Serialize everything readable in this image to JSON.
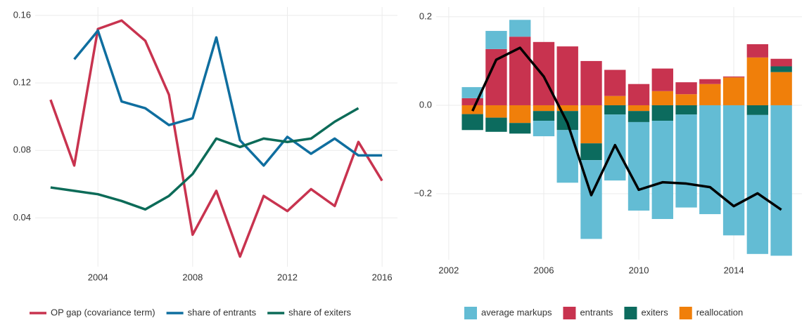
{
  "chart_data": [
    {
      "type": "line",
      "grid": true,
      "x": [
        2002,
        2003,
        2004,
        2005,
        2006,
        2007,
        2008,
        2009,
        2010,
        2011,
        2012,
        2013,
        2014,
        2015,
        2016
      ],
      "xlim": [
        2001.35,
        2016.65
      ],
      "xticks": [
        2004,
        2008,
        2012,
        2016
      ],
      "ylim": [
        0.011,
        0.165
      ],
      "yticks": [
        0.04,
        0.08,
        0.12,
        0.16
      ],
      "legend": "bottom",
      "series": [
        {
          "name": "OP gap (covariance term)",
          "color": "#c8334f",
          "values": [
            0.11,
            0.071,
            0.152,
            0.157,
            0.145,
            0.113,
            0.03,
            0.056,
            0.017,
            0.053,
            0.044,
            0.057,
            0.047,
            0.085,
            0.062
          ]
        },
        {
          "name": "share of entrants",
          "color": "#0f6e9f",
          "values": [
            null,
            0.134,
            0.151,
            0.109,
            0.105,
            0.095,
            0.099,
            0.147,
            0.086,
            0.071,
            0.088,
            0.078,
            0.087,
            0.077,
            0.077
          ]
        },
        {
          "name": "share of exiters",
          "color": "#0c6b58",
          "values": [
            0.058,
            0.056,
            0.054,
            0.05,
            0.045,
            0.053,
            0.066,
            0.087,
            0.082,
            0.087,
            0.085,
            0.087,
            0.097,
            0.105,
            null
          ]
        }
      ]
    },
    {
      "type": "bar",
      "stacked": true,
      "grid": true,
      "x": [
        2003,
        2004,
        2005,
        2006,
        2007,
        2008,
        2009,
        2010,
        2011,
        2012,
        2013,
        2014,
        2015,
        2016
      ],
      "xlim": [
        2001.47,
        2016.87
      ],
      "xticks": [
        2002,
        2006,
        2010,
        2014
      ],
      "ylim": [
        -0.349,
        0.222
      ],
      "yticks": [
        {
          "value": -0.2,
          "label": "−0.2"
        },
        {
          "value": 0,
          "label": "0.0"
        },
        0.2
      ],
      "legend": "bottom",
      "series": [
        {
          "name": "average markups",
          "color": "#63bcd4",
          "values": [
            0.025,
            0.041,
            0.038,
            -0.035,
            -0.119,
            -0.178,
            -0.149,
            -0.2,
            -0.222,
            -0.21,
            -0.246,
            -0.294,
            -0.314,
            -0.34
          ]
        },
        {
          "name": "entrants",
          "color": "#c8334f",
          "values": [
            0.016,
            0.127,
            0.155,
            0.143,
            0.133,
            0.1,
            0.059,
            0.048,
            0.051,
            0.027,
            0.011,
            0.002,
            0.03,
            0.017
          ]
        },
        {
          "name": "exiters",
          "color": "#0c6b5e",
          "values": [
            -0.036,
            -0.032,
            -0.024,
            -0.022,
            -0.043,
            -0.038,
            -0.021,
            -0.025,
            -0.035,
            -0.021,
            0,
            0,
            -0.022,
            0.013
          ]
        },
        {
          "name": "reallocation",
          "color": "#f07f0a",
          "values": [
            -0.02,
            -0.028,
            -0.04,
            -0.013,
            -0.013,
            -0.086,
            0.021,
            -0.013,
            0.032,
            0.025,
            0.048,
            0.063,
            0.108,
            0.075
          ]
        }
      ],
      "total_line": {
        "color": "#000000",
        "values": [
          -0.013,
          0.103,
          0.13,
          0.065,
          -0.04,
          -0.203,
          -0.09,
          -0.191,
          -0.174,
          -0.177,
          -0.185,
          -0.228,
          -0.199,
          -0.236
        ]
      }
    }
  ]
}
